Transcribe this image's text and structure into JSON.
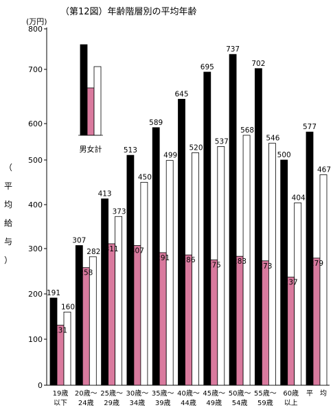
{
  "chart_data": {
    "type": "bar",
    "title": "（第12図）年齢階層別の平均年齢",
    "unit": "(万円)",
    "ylabel": [
      "（",
      "平",
      "均",
      "給",
      "与",
      "）"
    ],
    "yticks": [
      "0",
      "100",
      "200",
      "300",
      "400",
      "500",
      "600",
      "700",
      "800"
    ],
    "categories": [
      [
        "19歳",
        "以下"
      ],
      [
        "20歳～",
        "24歳"
      ],
      [
        "25歳～",
        "29歳"
      ],
      [
        "30歳～",
        "34歳"
      ],
      [
        "35歳～",
        "39歳"
      ],
      [
        "40歳～",
        "44歳"
      ],
      [
        "45歳～",
        "49歳"
      ],
      [
        "50歳～",
        "54歳"
      ],
      [
        "55歳～",
        "59歳"
      ],
      [
        "60歳",
        "以上"
      ],
      [
        "平　均",
        ""
      ]
    ],
    "series": [
      {
        "name": "男",
        "color": "#000000",
        "values": [
          191,
          307,
          413,
          513,
          589,
          645,
          695,
          737,
          702,
          500,
          577
        ]
      },
      {
        "name": "女",
        "color": "#d97a9e",
        "values": [
          131,
          258,
          311,
          307,
          291,
          286,
          275,
          283,
          273,
          237,
          279
        ]
      },
      {
        "name": "計",
        "color": "#ffffff",
        "values": [
          160,
          282,
          373,
          450,
          499,
          520,
          537,
          568,
          546,
          404,
          467
        ]
      }
    ],
    "legend": {
      "labels": [
        "男",
        "女",
        "計"
      ],
      "caption": "男女計",
      "position": "top-left"
    },
    "ylim": [
      0,
      800
    ]
  }
}
